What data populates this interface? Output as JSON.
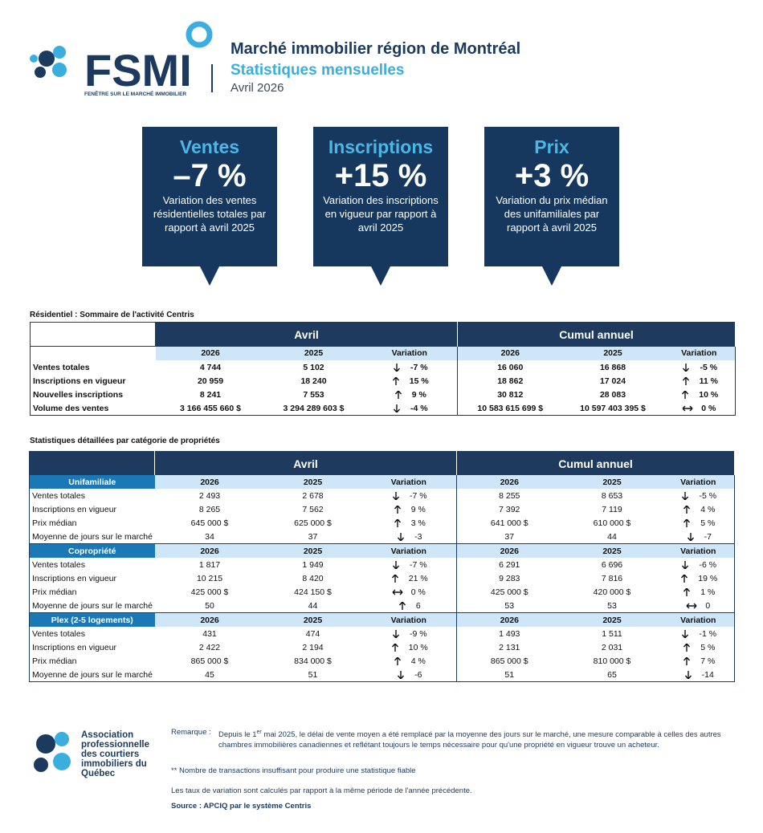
{
  "header": {
    "logo_text": "FSMI",
    "logo_tagline": "FENÊTRE SUR LE MARCHÉ IMMOBILIER",
    "title": "Marché immobilier région de Montréal",
    "subtitle": "Statistiques mensuelles",
    "period": "Avril 2026"
  },
  "callouts": [
    {
      "title": "Ventes",
      "value": "–7 %",
      "description": "Variation des ventes résidentielles totales par rapport à avril 2025"
    },
    {
      "title": "Inscriptions",
      "value": "+15 %",
      "description": "Variation des inscriptions en vigueur par rapport à avril 2025"
    },
    {
      "title": "Prix",
      "value": "+3 %",
      "description": "Variation du prix médian des unifamiliales par rapport à avril 2025"
    }
  ],
  "summary": {
    "title": "Résidentiel : Sommaire de l'activité Centris",
    "groups": [
      "Avril",
      "Cumul annuel"
    ],
    "columns": [
      "2026",
      "2025",
      "Variation",
      "2026",
      "2025",
      "Variation"
    ],
    "rows": [
      {
        "label": "Ventes totales",
        "cells": [
          "4 744",
          "5 102",
          "-7 %",
          "16 060",
          "16 868",
          "-5 %"
        ]
      },
      {
        "label": "Inscriptions en vigueur",
        "cells": [
          "20 959",
          "18 240",
          "15 %",
          "18 862",
          "17 024",
          "11 %"
        ]
      },
      {
        "label": "Nouvelles inscriptions",
        "cells": [
          "8 241",
          "7 553",
          "9 %",
          "30 812",
          "28 083",
          "10 %"
        ]
      },
      {
        "label": "Volume des ventes",
        "cells": [
          "3 166 455 660 $",
          "3 294 289 603 $",
          "-4 %",
          "10 583 615 699 $",
          "10 597 403 395 $",
          "0 %"
        ]
      }
    ]
  },
  "detail": {
    "title": "Statistiques détaillées par catégorie de propriétés",
    "groups": [
      "Avril",
      "Cumul annuel"
    ],
    "columns": [
      "2026",
      "2025",
      "Variation",
      "2026",
      "2025",
      "Variation"
    ],
    "sections": [
      {
        "name": "Unifamiliale",
        "rows": [
          {
            "label": "Ventes totales",
            "cells": [
              "2 493",
              "2 678",
              "-7 %",
              "8 255",
              "8 653",
              "-5 %"
            ]
          },
          {
            "label": "Inscriptions en vigueur",
            "cells": [
              "8 265",
              "7 562",
              "9 %",
              "7 392",
              "7 119",
              "4 %"
            ]
          },
          {
            "label": "Prix médian",
            "cells": [
              "645 000 $",
              "625 000 $",
              "3 %",
              "641 000 $",
              "610 000 $",
              "5 %"
            ]
          },
          {
            "label": "Moyenne de jours sur le marché",
            "cells": [
              "34",
              "37",
              "-3",
              "37",
              "44",
              "-7"
            ]
          }
        ]
      },
      {
        "name": "Copropriété",
        "rows": [
          {
            "label": "Ventes totales",
            "cells": [
              "1 817",
              "1 949",
              "-7 %",
              "6 291",
              "6 696",
              "-6 %"
            ]
          },
          {
            "label": "Inscriptions en vigueur",
            "cells": [
              "10 215",
              "8 420",
              "21 %",
              "9 283",
              "7 816",
              "19 %"
            ]
          },
          {
            "label": "Prix médian",
            "cells": [
              "425 000 $",
              "424 150 $",
              "0 %",
              "425 000 $",
              "420 000 $",
              "1 %"
            ]
          },
          {
            "label": "Moyenne de jours sur le marché",
            "cells": [
              "50",
              "44",
              "6",
              "53",
              "53",
              "0"
            ]
          }
        ]
      },
      {
        "name": "Plex (2-5 logements)",
        "rows": [
          {
            "label": "Ventes totales",
            "cells": [
              "431",
              "474",
              "-9 %",
              "1 493",
              "1 511",
              "-1 %"
            ]
          },
          {
            "label": "Inscriptions en vigueur",
            "cells": [
              "2 422",
              "2 194",
              "10 %",
              "2 131",
              "2 031",
              "5 %"
            ]
          },
          {
            "label": "Prix médian",
            "cells": [
              "865 000 $",
              "834 000 $",
              "4 %",
              "865 000 $",
              "810 000 $",
              "7 %"
            ]
          },
          {
            "label": "Moyenne de jours sur le marché",
            "cells": [
              "45",
              "51",
              "-6",
              "51",
              "65",
              "-14"
            ]
          }
        ]
      }
    ]
  },
  "footer": {
    "organization": "Association professionnelle des courtiers immobiliers du Québec",
    "remark_label": "Remarque :",
    "remark_before": "Depuis le 1",
    "remark_sup": "er",
    "remark_after": " mai 2025, le délai de vente moyen a été remplacé par la moyenne des jours sur le marché, une mesure comparable à celles des autres chambres immobilières canadiennes et reflétant toujours  le temps nécessaire pour qu'une propriété en vigueur trouve un acheteur.",
    "notes": [
      "** Nombre de transactions insuffisant pour produire une statistique fiable",
      "Les taux de variation sont calculés par rapport à la même période de l'année précédente."
    ],
    "source": "Source : APCIQ par le système Centris"
  }
}
